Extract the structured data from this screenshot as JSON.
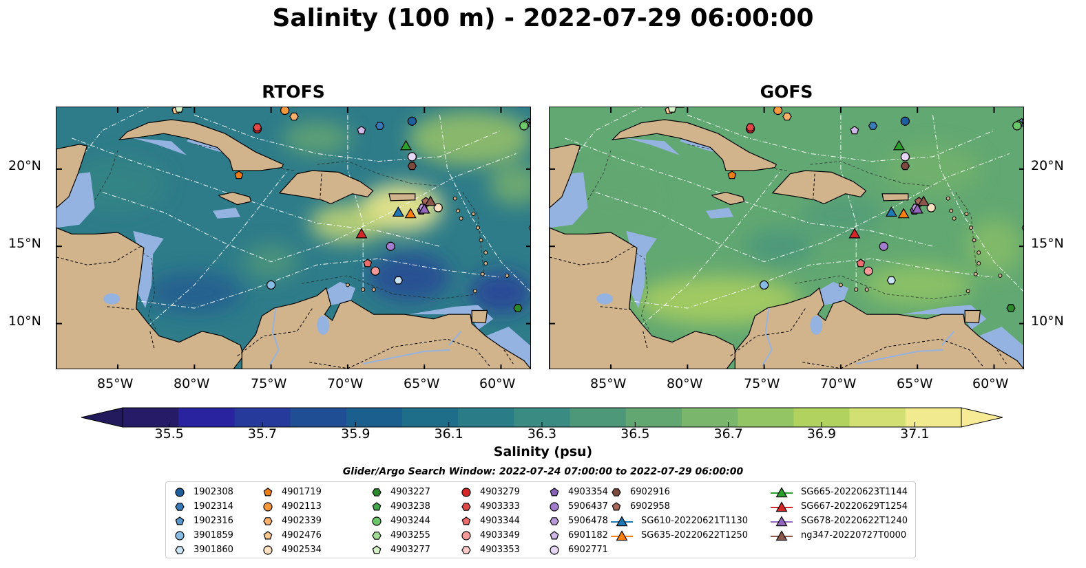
{
  "title": "Salinity (100 m) - 2022-07-29 06:00:00",
  "panels": [
    {
      "title": "RTOFS"
    },
    {
      "title": "GOFS"
    }
  ],
  "lat_ticks": [
    "20°N",
    "15°N",
    "10°N"
  ],
  "lon_ticks": [
    "85°W",
    "80°W",
    "75°W",
    "70°W",
    "65°W",
    "60°W"
  ],
  "map_extent": {
    "lon": [
      -89,
      -58
    ],
    "lat": [
      7,
      24
    ]
  },
  "colorbar": {
    "label": "Salinity (psu)",
    "ticks": [
      "35.5",
      "35.7",
      "35.9",
      "36.1",
      "36.3",
      "36.5",
      "36.7",
      "36.9",
      "37.1"
    ],
    "range": [
      35.4,
      37.2
    ],
    "colors": [
      "#261b66",
      "#2a23a0",
      "#253a9a",
      "#1f4e94",
      "#1b5f8f",
      "#1e6e8a",
      "#2a7d86",
      "#3a8b82",
      "#4e987a",
      "#62a672",
      "#7ab66b",
      "#94c564",
      "#b1d25f",
      "#d2df73",
      "#f1ea8e"
    ],
    "extend_min": "#221a5c",
    "extend_max": "#f7ec95"
  },
  "search_window": "Glider/Argo Search Window: 2022-07-24 07:00:00 to 2022-07-29 06:00:00",
  "legend": [
    {
      "label": "1902308",
      "marker": "circle",
      "color": "#1f5f9e"
    },
    {
      "label": "1902314",
      "marker": "hexagon",
      "color": "#3979b8"
    },
    {
      "label": "1902316",
      "marker": "pentagon",
      "color": "#5a96cc"
    },
    {
      "label": "3901859",
      "marker": "circle",
      "color": "#87bde4"
    },
    {
      "label": "3901860",
      "marker": "hexagon",
      "color": "#c9e4f5"
    },
    {
      "label": "4901719",
      "marker": "pentagon",
      "color": "#ee7d14"
    },
    {
      "label": "4902113",
      "marker": "circle",
      "color": "#f6993c"
    },
    {
      "label": "4902339",
      "marker": "hexagon",
      "color": "#f9b06b"
    },
    {
      "label": "4902476",
      "marker": "pentagon",
      "color": "#fbc890"
    },
    {
      "label": "4902534",
      "marker": "circle",
      "color": "#fde2c2"
    },
    {
      "label": "4903227",
      "marker": "hexagon",
      "color": "#2a8a2a"
    },
    {
      "label": "4903238",
      "marker": "pentagon",
      "color": "#42a84a"
    },
    {
      "label": "4903244",
      "marker": "circle",
      "color": "#6cc76a"
    },
    {
      "label": "4903255",
      "marker": "hexagon",
      "color": "#a1dd94"
    },
    {
      "label": "4903277",
      "marker": "pentagon",
      "color": "#d5f2c7"
    },
    {
      "label": "4903279",
      "marker": "circle",
      "color": "#d62728"
    },
    {
      "label": "4903333",
      "marker": "hexagon",
      "color": "#e04848"
    },
    {
      "label": "4903344",
      "marker": "pentagon",
      "color": "#ef6c6c"
    },
    {
      "label": "4903349",
      "marker": "circle",
      "color": "#f69a99"
    },
    {
      "label": "4903353",
      "marker": "hexagon",
      "color": "#fbc9c7"
    },
    {
      "label": "4903354",
      "marker": "pentagon",
      "color": "#8762b8"
    },
    {
      "label": "5906437",
      "marker": "circle",
      "color": "#a27ccd"
    },
    {
      "label": "5906478",
      "marker": "hexagon",
      "color": "#b99ad8"
    },
    {
      "label": "6901182",
      "marker": "pentagon",
      "color": "#d1b9ea"
    },
    {
      "label": "6902771",
      "marker": "circle",
      "color": "#e6d7f6"
    },
    {
      "label": "6902916",
      "marker": "hexagon",
      "color": "#7f4a3e"
    },
    {
      "label": "6902958",
      "marker": "pentagon",
      "color": "#a8695c"
    },
    {
      "label": "SG610-20220621T1130",
      "marker": "triangle-line",
      "color": "#1f77b4"
    },
    {
      "label": "SG635-20220622T1250",
      "marker": "triangle-line",
      "color": "#ff7f0e"
    },
    {
      "label": "SG665-20220623T1144",
      "marker": "triangle-line",
      "color": "#2ca02c"
    },
    {
      "label": "SG667-20220629T1254",
      "marker": "triangle-line",
      "color": "#d62728"
    },
    {
      "label": "SG678-20220622T1240",
      "marker": "triangle-line",
      "color": "#9467bd"
    },
    {
      "label": "ng347-20220727T0000",
      "marker": "triangle-line",
      "color": "#8c564b"
    }
  ],
  "markers": [
    {
      "id": "1902308",
      "lon": -65.8,
      "lat": 23.1
    },
    {
      "id": "1902314",
      "lon": -67.9,
      "lat": 22.8
    },
    {
      "id": "1902316",
      "lon": -58.2,
      "lat": 23.0
    },
    {
      "id": "3901859",
      "lon": -75.0,
      "lat": 12.5
    },
    {
      "id": "3901860",
      "lon": -66.7,
      "lat": 12.8
    },
    {
      "id": "4901719",
      "lon": -77.1,
      "lat": 19.6
    },
    {
      "id": "4902113",
      "lon": -74.1,
      "lat": 23.8
    },
    {
      "id": "4902339",
      "lon": -73.5,
      "lat": 23.4
    },
    {
      "id": "4902476",
      "lon": -81.2,
      "lat": 23.8
    },
    {
      "id": "4902534",
      "lon": -64.1,
      "lat": 17.5
    },
    {
      "id": "4903227",
      "lon": -58.9,
      "lat": 11.0
    },
    {
      "id": "4903238",
      "lon": -58.4,
      "lat": 22.9
    },
    {
      "id": "4903244",
      "lon": -58.5,
      "lat": 22.8
    },
    {
      "id": "4903255",
      "lon": -57.9,
      "lat": 23.1
    },
    {
      "id": "4903277",
      "lon": -81.0,
      "lat": 23.9
    },
    {
      "id": "4903279",
      "lon": -75.9,
      "lat": 22.6
    },
    {
      "id": "4903333",
      "lon": -75.9,
      "lat": 22.7
    },
    {
      "id": "4903344",
      "lon": -68.7,
      "lat": 13.9
    },
    {
      "id": "4903349",
      "lon": -68.2,
      "lat": 13.4
    },
    {
      "id": "4903353",
      "lon": -57.9,
      "lat": 16.2
    },
    {
      "id": "4903354",
      "lon": -65.2,
      "lat": 17.3
    },
    {
      "id": "5906437",
      "lon": -67.2,
      "lat": 15.0
    },
    {
      "id": "5906478",
      "lon": -65.1,
      "lat": 17.5
    },
    {
      "id": "6901182",
      "lon": -69.1,
      "lat": 22.5
    },
    {
      "id": "6902771",
      "lon": -65.8,
      "lat": 20.8
    },
    {
      "id": "6902916",
      "lon": -65.8,
      "lat": 20.2
    },
    {
      "id": "6902958",
      "lon": -64.9,
      "lat": 17.9
    },
    {
      "id": "SG610-20220621T1130",
      "lon": -66.7,
      "lat": 17.2
    },
    {
      "id": "SG635-20220622T1250",
      "lon": -65.9,
      "lat": 17.1
    },
    {
      "id": "SG665-20220623T1144",
      "lon": -66.2,
      "lat": 21.5
    },
    {
      "id": "SG667-20220629T1254",
      "lon": -69.1,
      "lat": 15.8
    },
    {
      "id": "SG678-20220622T1240",
      "lon": -65.0,
      "lat": 17.4
    },
    {
      "id": "ng347-20220727T0000",
      "lon": -64.6,
      "lat": 17.9
    }
  ]
}
